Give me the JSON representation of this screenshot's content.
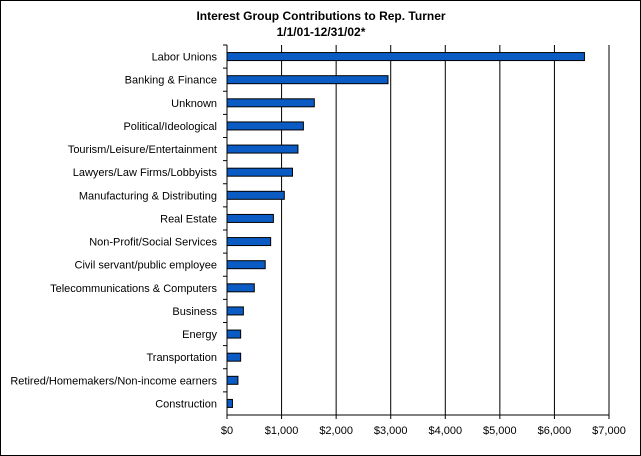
{
  "chart_data": {
    "type": "bar",
    "orientation": "horizontal",
    "title": "Interest Group Contributions to Rep. Turner",
    "subtitle": "1/1/01-12/31/02*",
    "xlabel": "",
    "ylabel": "",
    "categories": [
      "Labor Unions",
      "Banking & Finance",
      "Unknown",
      "Political/Ideological",
      "Tourism/Leisure/Entertainment",
      "Lawyers/Law Firms/Lobbyists",
      "Manufacturing & Distributing",
      "Real Estate",
      "Non-Profit/Social Services",
      "Civil servant/public employee",
      "Telecommunications & Computers",
      "Business",
      "Energy",
      "Transportation",
      "Retired/Homemakers/Non-income earners",
      "Construction"
    ],
    "values": [
      6550,
      2950,
      1600,
      1400,
      1300,
      1200,
      1050,
      850,
      800,
      700,
      500,
      300,
      250,
      250,
      200,
      100
    ],
    "xlim": [
      0,
      7000
    ],
    "x_ticks": [
      0,
      1000,
      2000,
      3000,
      4000,
      5000,
      6000,
      7000
    ],
    "x_tick_labels": [
      "$0",
      "$1,000",
      "$2,000",
      "$3,000",
      "$4,000",
      "$5,000",
      "$6,000",
      "$7,000"
    ],
    "grid": "vertical",
    "legend": "none",
    "colors": {
      "bar_fill": "#0a5bc4",
      "bar_stroke": "#000000",
      "gridline": "#000000",
      "background": "#ffffff"
    }
  }
}
